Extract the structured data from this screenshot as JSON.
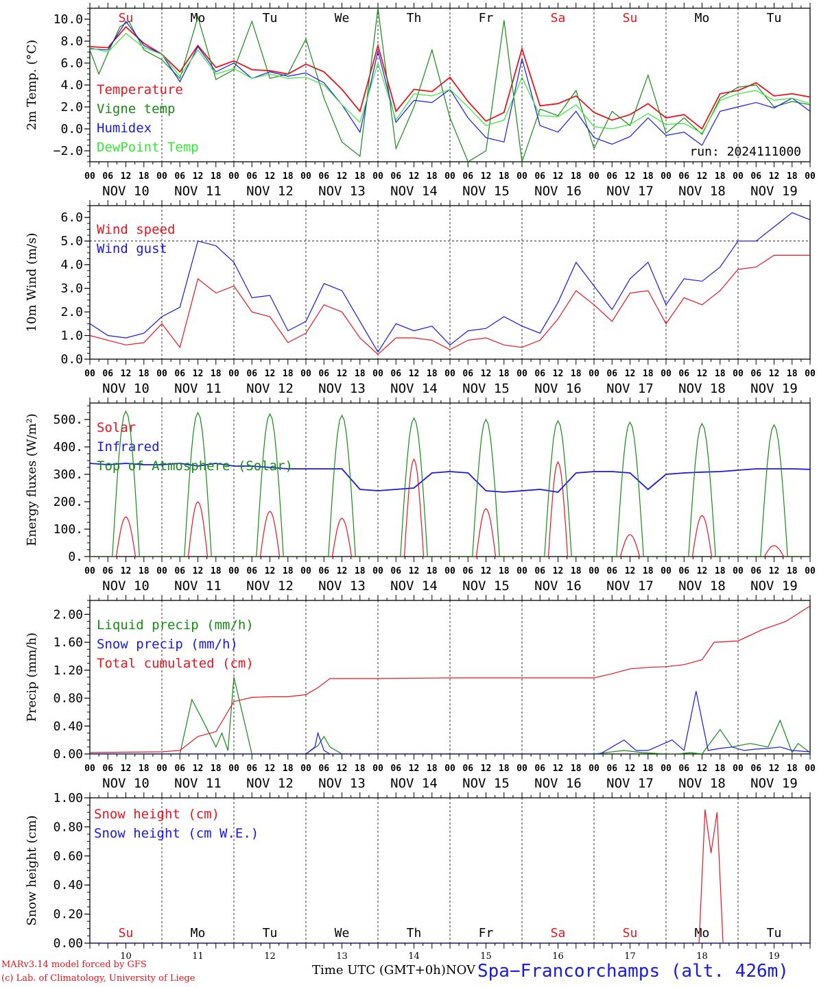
{
  "colors": {
    "red": "#e8141e",
    "green": "#158a15",
    "blue": "#1818e8",
    "lightgreen": "#34e834",
    "axis": "#000000"
  },
  "run_label": "run: 2024111000",
  "hour_ticks": [
    "00",
    "06",
    "12",
    "18"
  ],
  "final_tick": "00",
  "date_labels": [
    "NOV 10",
    "NOV 11",
    "NOV 12",
    "NOV 13",
    "NOV 14",
    "NOV 15",
    "NOV 16",
    "NOV 17",
    "NOV 18",
    "NOV 19"
  ],
  "weekdays": [
    "Su",
    "Mo",
    "Tu",
    "We",
    "Th",
    "Fr",
    "Sa",
    "Su",
    "Mo",
    "Tu"
  ],
  "weekday_colors": [
    "red",
    "black",
    "black",
    "black",
    "black",
    "black",
    "red",
    "red",
    "black",
    "black"
  ],
  "day_numbers": [
    "10",
    "11",
    "12",
    "13",
    "14",
    "15",
    "16",
    "17",
    "18",
    "19"
  ],
  "footer": {
    "credit_line1": "MARv3.14 model forced by GFS",
    "credit_line2": "(c) Lab. of Climatology, University of Liege",
    "x_title": "Time UTC (GMT+0h)NOV",
    "station": "Spa−Francorchamps (alt. 426m)"
  },
  "chart_data": [
    {
      "type": "line",
      "ylabel": "2m Temp. (°C)",
      "ylim": [
        -3,
        11
      ],
      "yticks": [
        "−2.0",
        "0.0",
        "2.0",
        "4.0",
        "6.0",
        "8.0",
        "10.0"
      ],
      "ytick_values": [
        -2,
        0,
        2,
        4,
        6,
        8,
        10
      ],
      "x_hours_from_start": "0-240",
      "series": [
        {
          "name": "Temperature",
          "color": "red",
          "x": [
            0,
            6,
            12,
            18,
            24,
            30,
            36,
            42,
            48,
            54,
            60,
            66,
            72,
            78,
            84,
            90,
            96,
            102,
            108,
            114,
            120,
            126,
            132,
            138,
            144,
            150,
            156,
            162,
            168,
            174,
            180,
            186,
            192,
            198,
            204,
            210,
            216,
            222,
            228,
            234,
            240
          ],
          "values": [
            7.5,
            7.4,
            9.3,
            7.8,
            6.8,
            5.2,
            7.6,
            5.6,
            6.2,
            5.4,
            5.3,
            5.0,
            5.9,
            5.2,
            3.6,
            1.6,
            7.6,
            1.6,
            3.6,
            3.4,
            4.7,
            2.5,
            0.7,
            1.5,
            7.3,
            2.1,
            2.3,
            3.0,
            1.5,
            0.8,
            1.3,
            2.3,
            1.0,
            1.3,
            0.0,
            3.2,
            3.5,
            4.2,
            3.0,
            3.2,
            2.9
          ]
        },
        {
          "name": "Vigne temp",
          "color": "green",
          "x": [
            0,
            3,
            6,
            10,
            13,
            18,
            24,
            30,
            36,
            42,
            48,
            54,
            60,
            66,
            72,
            78,
            84,
            90,
            96,
            102,
            108,
            114,
            120,
            126,
            132,
            138,
            144,
            150,
            156,
            162,
            168,
            174,
            180,
            186,
            192,
            198,
            204,
            210,
            216,
            222,
            228,
            234,
            240
          ],
          "values": [
            7.2,
            5.0,
            6.9,
            9.3,
            9.8,
            7.2,
            6.3,
            4.6,
            10.2,
            4.5,
            5.4,
            9.8,
            4.6,
            5.0,
            8.2,
            2.8,
            -1.2,
            -2.5,
            11.0,
            -1.8,
            2.0,
            7.2,
            1.0,
            -3.0,
            -2.0,
            9.9,
            -3.0,
            1.8,
            1.2,
            3.5,
            -1.8,
            1.6,
            0.3,
            4.9,
            -0.4,
            1.0,
            -0.5,
            2.8,
            3.8,
            4.0,
            2.0,
            2.5,
            2.2
          ]
        },
        {
          "name": "Humidex",
          "color": "blue",
          "x": [
            0,
            6,
            12,
            18,
            24,
            30,
            36,
            42,
            48,
            54,
            60,
            66,
            72,
            78,
            84,
            90,
            96,
            102,
            108,
            114,
            120,
            126,
            132,
            138,
            144,
            150,
            156,
            162,
            168,
            174,
            180,
            186,
            192,
            198,
            204,
            210,
            216,
            222,
            228,
            234,
            240
          ],
          "values": [
            7.3,
            7.2,
            9.8,
            7.6,
            6.8,
            4.3,
            7.5,
            5.2,
            6.0,
            4.6,
            5.2,
            4.8,
            5.1,
            4.2,
            2.2,
            -0.3,
            7.1,
            0.6,
            2.6,
            2.4,
            3.6,
            1.0,
            -0.8,
            -1.2,
            6.4,
            0.3,
            -0.3,
            1.6,
            -0.8,
            -1.4,
            -0.7,
            1.0,
            -0.6,
            -0.3,
            -1.5,
            1.6,
            2.0,
            2.4,
            1.9,
            2.8,
            1.6
          ]
        },
        {
          "name": "DewPoint Temp",
          "color": "lightgreen",
          "x": [
            0,
            6,
            12,
            18,
            24,
            30,
            36,
            42,
            48,
            54,
            60,
            66,
            72,
            78,
            84,
            90,
            96,
            102,
            108,
            114,
            120,
            126,
            132,
            138,
            144,
            150,
            156,
            162,
            168,
            174,
            180,
            186,
            192,
            198,
            204,
            210,
            216,
            222,
            228,
            234,
            240
          ],
          "values": [
            7.4,
            7.0,
            8.7,
            7.4,
            6.8,
            4.8,
            7.2,
            5.0,
            5.5,
            4.6,
            5.0,
            4.6,
            4.7,
            4.0,
            2.2,
            0.6,
            6.0,
            0.8,
            3.2,
            3.0,
            3.6,
            2.0,
            0.3,
            0.8,
            4.7,
            1.2,
            1.1,
            2.2,
            0.2,
            0.0,
            0.4,
            1.4,
            0.4,
            0.5,
            -0.4,
            2.6,
            3.2,
            3.5,
            2.6,
            2.8,
            2.3
          ]
        }
      ]
    },
    {
      "type": "line",
      "ylabel": "10m Wind (m/s)",
      "ylim": [
        0,
        6.5
      ],
      "yticks": [
        "0.0",
        "1.0",
        "2.0",
        "3.0",
        "4.0",
        "5.0",
        "6.0"
      ],
      "ytick_values": [
        0,
        1,
        2,
        3,
        4,
        5,
        6
      ],
      "reference_line": 5,
      "series": [
        {
          "name": "Wind speed",
          "color": "red",
          "x": [
            0,
            6,
            12,
            18,
            24,
            30,
            36,
            42,
            48,
            54,
            60,
            66,
            72,
            78,
            84,
            90,
            96,
            102,
            108,
            114,
            120,
            126,
            132,
            138,
            144,
            150,
            156,
            162,
            168,
            174,
            180,
            186,
            192,
            198,
            204,
            210,
            216,
            222,
            228,
            234,
            240
          ],
          "values": [
            1.0,
            0.8,
            0.6,
            0.7,
            1.5,
            0.5,
            3.4,
            2.8,
            3.1,
            2.0,
            1.8,
            0.7,
            1.1,
            2.3,
            2.0,
            0.9,
            0.2,
            0.9,
            0.9,
            0.8,
            0.4,
            0.8,
            0.9,
            0.6,
            0.5,
            0.8,
            1.7,
            2.9,
            2.3,
            1.6,
            2.8,
            2.9,
            1.5,
            2.6,
            2.3,
            2.9,
            3.8,
            3.9,
            4.4,
            4.4,
            4.4
          ]
        },
        {
          "name": "Wind gust",
          "color": "blue",
          "x": [
            0,
            6,
            12,
            18,
            24,
            30,
            36,
            42,
            48,
            54,
            60,
            66,
            72,
            78,
            84,
            90,
            96,
            102,
            108,
            114,
            120,
            126,
            132,
            138,
            144,
            150,
            156,
            162,
            168,
            174,
            180,
            186,
            192,
            198,
            204,
            210,
            216,
            222,
            228,
            234,
            240
          ],
          "values": [
            1.5,
            1.0,
            0.9,
            1.1,
            1.8,
            2.2,
            5.0,
            4.8,
            4.1,
            2.6,
            2.7,
            1.2,
            1.6,
            3.2,
            2.9,
            1.6,
            0.3,
            1.5,
            1.2,
            1.4,
            0.6,
            1.2,
            1.3,
            1.8,
            1.4,
            1.1,
            2.4,
            4.1,
            3.1,
            2.1,
            3.4,
            4.1,
            2.3,
            3.4,
            3.3,
            3.9,
            5.0,
            5.0,
            5.6,
            6.2,
            5.9
          ]
        }
      ]
    },
    {
      "type": "line",
      "ylabel": "Energy fluxes (W/m²)",
      "ylim": [
        0,
        560
      ],
      "yticks": [
        "0.",
        "100.",
        "200.",
        "300.",
        "400.",
        "500."
      ],
      "ytick_values": [
        0,
        100,
        200,
        300,
        400,
        500
      ],
      "series": [
        {
          "name": "Solar",
          "color": "red",
          "day_peaks": [
            145,
            200,
            165,
            140,
            355,
            175,
            345,
            80,
            150,
            40
          ]
        },
        {
          "name": "Infrared",
          "color": "blue",
          "x": [
            0,
            6,
            12,
            18,
            24,
            30,
            36,
            42,
            48,
            54,
            60,
            66,
            72,
            78,
            84,
            90,
            96,
            102,
            108,
            114,
            120,
            126,
            132,
            138,
            144,
            150,
            156,
            162,
            168,
            174,
            180,
            186,
            192,
            198,
            204,
            210,
            216,
            222,
            228,
            234,
            240
          ],
          "values": [
            340,
            335,
            340,
            335,
            335,
            340,
            330,
            340,
            330,
            330,
            325,
            320,
            320,
            320,
            320,
            245,
            240,
            245,
            250,
            305,
            310,
            305,
            240,
            235,
            240,
            245,
            235,
            305,
            310,
            310,
            305,
            245,
            300,
            305,
            308,
            310,
            315,
            320,
            320,
            320,
            318
          ]
        },
        {
          "name": "Top of Atmosphere (Solar)",
          "color": "green",
          "day_peaks": [
            530,
            525,
            520,
            515,
            505,
            500,
            495,
            490,
            485,
            480
          ]
        }
      ]
    },
    {
      "type": "line",
      "ylabel": "Precip (mm/h)",
      "ylim": [
        0,
        2.2
      ],
      "yticks": [
        "0.00",
        "0.40",
        "0.80",
        "1.20",
        "1.60",
        "2.00"
      ],
      "ytick_values": [
        0,
        0.4,
        0.8,
        1.2,
        1.6,
        2.0
      ],
      "series": [
        {
          "name": "Liquid precip (mm/h)",
          "color": "green",
          "x": [
            0,
            30,
            34,
            38,
            42,
            44,
            46,
            48,
            54,
            72,
            76,
            78,
            80,
            84,
            90,
            150,
            168,
            178,
            184,
            192,
            196,
            200,
            204,
            210,
            214,
            220,
            226,
            230,
            234,
            236,
            240
          ],
          "values": [
            0,
            0,
            0.78,
            0.45,
            0.1,
            0.3,
            0.05,
            1.1,
            0,
            0,
            0.12,
            0.25,
            0.1,
            0,
            0,
            0,
            0,
            0.05,
            0.02,
            0,
            0,
            0.02,
            0.0,
            0.35,
            0.1,
            0.15,
            0.1,
            0.48,
            0.02,
            0.15,
            0.02
          ]
        },
        {
          "name": "Snow precip (mm/h)",
          "color": "blue",
          "x": [
            0,
            72,
            75,
            76,
            78,
            80,
            170,
            174,
            178,
            182,
            186,
            194,
            198,
            202,
            206,
            210,
            214,
            218,
            222,
            226,
            230,
            234,
            240
          ],
          "values": [
            0,
            0,
            0.1,
            0.3,
            0.05,
            0,
            0,
            0.1,
            0.2,
            0.05,
            0.05,
            0.2,
            0.05,
            0.9,
            0.05,
            0.08,
            0.1,
            0.05,
            0.07,
            0.08,
            0.1,
            0.05,
            0.03
          ]
        },
        {
          "name": "Total cumulated (cm)",
          "color": "red",
          "x": [
            0,
            24,
            30,
            36,
            42,
            48,
            54,
            60,
            66,
            72,
            76,
            80,
            96,
            120,
            144,
            168,
            174,
            180,
            186,
            192,
            198,
            204,
            208,
            216,
            224,
            232,
            240
          ],
          "values": [
            0.02,
            0.03,
            0.05,
            0.25,
            0.32,
            0.75,
            0.81,
            0.82,
            0.82,
            0.85,
            0.95,
            1.08,
            1.08,
            1.09,
            1.09,
            1.09,
            1.15,
            1.22,
            1.24,
            1.25,
            1.28,
            1.35,
            1.6,
            1.62,
            1.78,
            1.9,
            2.12
          ]
        }
      ]
    },
    {
      "type": "line",
      "ylabel": "Snow height (cm)",
      "ylim": [
        0,
        1
      ],
      "yticks": [
        "0.00",
        "0.20",
        "0.40",
        "0.60",
        "0.80",
        "1.00"
      ],
      "ytick_values": [
        0,
        0.2,
        0.4,
        0.6,
        0.8,
        1.0
      ],
      "series": [
        {
          "name": "Snow height (cm)",
          "color": "red",
          "x": [
            0,
            203,
            205,
            207,
            209,
            211,
            213,
            240
          ],
          "values": [
            0,
            0,
            0.92,
            0.62,
            0.9,
            0,
            0,
            0
          ]
        },
        {
          "name": "Snow height (cm W.E.)",
          "color": "blue",
          "x": [
            0,
            240
          ],
          "values": [
            0,
            0
          ]
        }
      ]
    }
  ]
}
